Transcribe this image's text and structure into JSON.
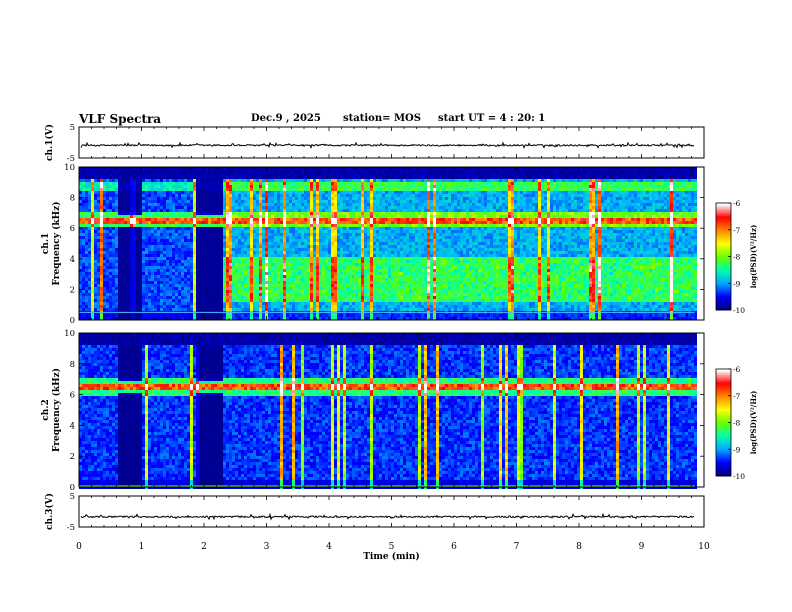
{
  "header": {
    "title": "VLF Spectra",
    "date": "Dec.9 , 2025",
    "station": "station= MOS",
    "start_ut": "start UT =  4 : 20: 1"
  },
  "chart_data": [
    {
      "type": "line",
      "panel": "ch.1 waveform",
      "ylabel": "ch.1(V)",
      "ylim": [
        -5,
        5
      ],
      "yticks": [
        "5",
        "-5"
      ],
      "xlim": [
        0,
        9.85
      ],
      "description_level": -0.9
    },
    {
      "type": "heatmap",
      "panel": "ch.1 spectrogram",
      "ylabel": "ch.1 Frequency (kHz)",
      "ylim": [
        0,
        10
      ],
      "yticks": [
        "0",
        "2",
        "4",
        "6",
        "8",
        "10"
      ],
      "xlim": [
        0,
        9.85
      ],
      "features": {
        "main_band_khz": 6.6,
        "upper_band_khz": 8.8,
        "gaps_min": [
          [
            0.6,
            1.0
          ],
          [
            1.85,
            2.3
          ]
        ]
      },
      "colorbar": {
        "label": "log(PSD)(V²/Hz)",
        "range": [
          -10,
          -6
        ],
        "ticks": [
          "-6",
          "-7",
          "-8",
          "-9",
          "-10"
        ]
      }
    },
    {
      "type": "heatmap",
      "panel": "ch.2 spectrogram",
      "ylabel": "ch.2 Frequency (kHz)",
      "ylim": [
        0,
        10
      ],
      "yticks": [
        "0",
        "2",
        "4",
        "6",
        "8",
        "10"
      ],
      "xlim": [
        0,
        9.85
      ],
      "features": {
        "main_band_khz": 6.6,
        "gaps_min": [
          [
            0.6,
            1.0
          ],
          [
            1.85,
            2.3
          ]
        ]
      },
      "colorbar": {
        "label": "log(PSD)(V²/Hz)",
        "range": [
          -10,
          -6
        ],
        "ticks": [
          "-6",
          "-7",
          "-8",
          "-9",
          "-10"
        ]
      }
    },
    {
      "type": "line",
      "panel": "ch.3 waveform",
      "ylabel": "ch.3(V)",
      "ylim": [
        -5,
        5
      ],
      "yticks": [
        "5",
        "-5"
      ],
      "xlim": [
        0,
        9.85
      ],
      "description_level": -1.7
    }
  ],
  "xaxis": {
    "label": "Time (min)",
    "range": [
      0,
      10
    ],
    "ticks": [
      "0",
      "1",
      "2",
      "3",
      "4",
      "5",
      "6",
      "7",
      "8",
      "9",
      "10"
    ]
  },
  "colors": {
    "colormap": [
      "#00007a",
      "#0000ff",
      "#00aaff",
      "#00ffaa",
      "#66ff00",
      "#ffff00",
      "#ff8800",
      "#ff0000",
      "#ffffff"
    ],
    "background": "#000000"
  }
}
